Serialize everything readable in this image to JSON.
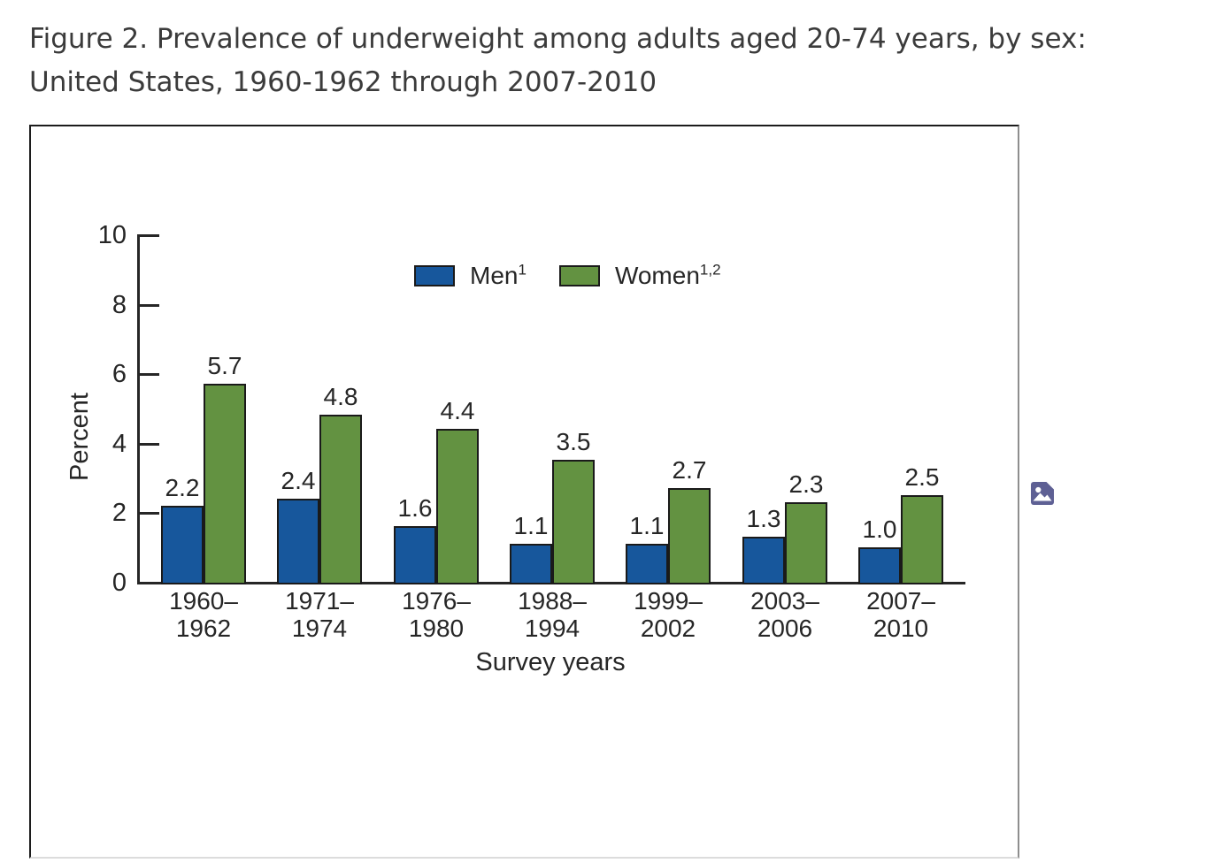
{
  "header": {
    "title_line1": "Figure 2. Prevalence of underweight among adults aged 20-74 years, by sex:",
    "title_line2": "United States, 1960-1962 through 2007-2010"
  },
  "figure": {
    "icon": {
      "name": "image-placeholder-icon",
      "color": "#5E6094"
    }
  },
  "chart_data": {
    "type": "bar",
    "title": "Figure 2. Prevalence of underweight among adults aged 20-74 years, by sex: United States, 1960-1962 through 2007-2010",
    "categories": [
      "1960–1962",
      "1971–1974",
      "1976–1980",
      "1988–1994",
      "1999–2002",
      "2003–2006",
      "2007–2010"
    ],
    "series": [
      {
        "name": "Men",
        "superscript": "1",
        "color": "#17579C",
        "values": [
          2.2,
          2.4,
          1.6,
          1.1,
          1.1,
          1.3,
          1.0
        ]
      },
      {
        "name": "Women",
        "superscript": "1,2",
        "color": "#639241",
        "values": [
          5.7,
          4.8,
          4.4,
          3.5,
          2.7,
          2.3,
          2.5
        ]
      }
    ],
    "xlabel": "Survey years",
    "ylabel": "Percent",
    "ylim": [
      0,
      10
    ],
    "yticks": [
      0,
      2,
      4,
      6,
      8,
      10
    ],
    "grid": false,
    "value_labels": true,
    "legend_position": "top-center",
    "bar_edge_color": "#1A1A1A",
    "axis_color": "#262626"
  }
}
